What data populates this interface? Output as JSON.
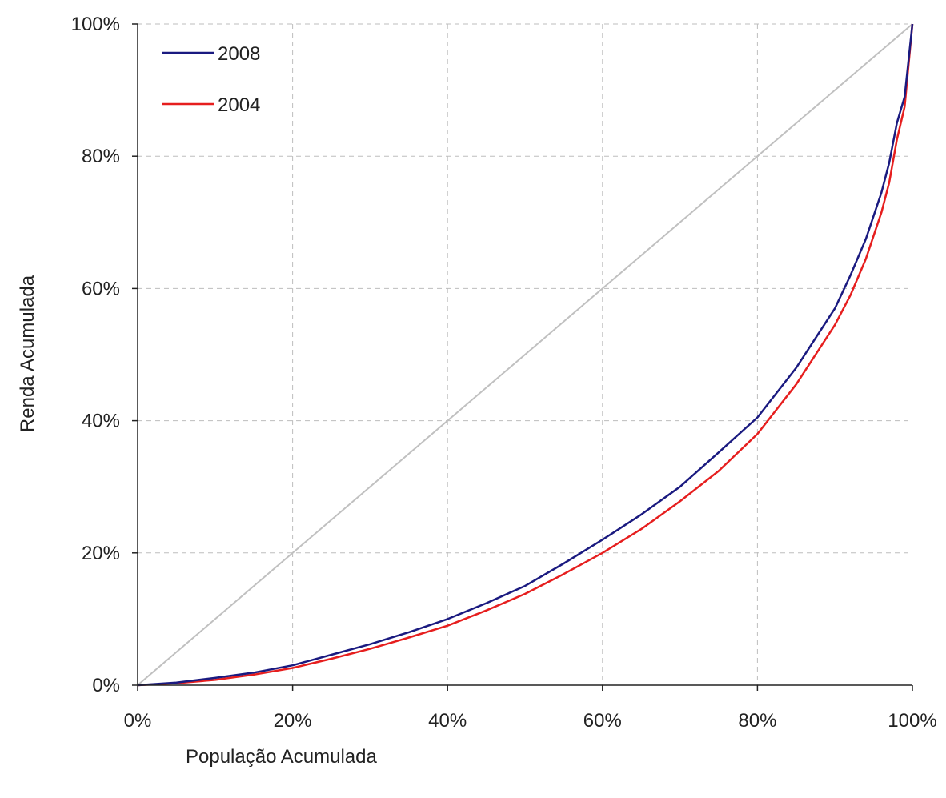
{
  "chart_data": {
    "type": "line",
    "title": "",
    "xlabel": "População Acumulada",
    "ylabel": "Renda Acumulada",
    "xlim": [
      0,
      100
    ],
    "ylim": [
      0,
      100
    ],
    "x_ticks": [
      "0%",
      "20%",
      "40%",
      "60%",
      "80%",
      "100%"
    ],
    "y_ticks": [
      "0%",
      "20%",
      "40%",
      "60%",
      "80%",
      "100%"
    ],
    "grid": true,
    "legend_position": "top-left",
    "equality_line": {
      "x": [
        0,
        100
      ],
      "y": [
        0,
        100
      ],
      "color": "#c0c0c0"
    },
    "series": [
      {
        "name": "2008",
        "color": "#1a1a80",
        "x": [
          0,
          5,
          10,
          15,
          20,
          25,
          30,
          35,
          40,
          45,
          50,
          55,
          60,
          65,
          70,
          75,
          80,
          85,
          90,
          92,
          94,
          96,
          97,
          98,
          99,
          100
        ],
        "y": [
          0,
          0.4,
          1.1,
          1.9,
          3.0,
          4.6,
          6.2,
          8.0,
          10.0,
          12.4,
          15.0,
          18.4,
          22.0,
          25.8,
          30.0,
          35.2,
          40.5,
          48.0,
          57.0,
          62.0,
          67.5,
          74.5,
          79.0,
          85.0,
          89.0,
          100
        ]
      },
      {
        "name": "2004",
        "color": "#e61e1e",
        "x": [
          0,
          5,
          10,
          15,
          20,
          25,
          30,
          35,
          40,
          45,
          50,
          55,
          60,
          65,
          70,
          75,
          80,
          85,
          90,
          92,
          94,
          96,
          97,
          98,
          99,
          100
        ],
        "y": [
          0,
          0.3,
          0.8,
          1.6,
          2.6,
          4.0,
          5.5,
          7.2,
          9.0,
          11.3,
          13.8,
          16.8,
          20.0,
          23.6,
          27.8,
          32.4,
          38.0,
          45.5,
          54.5,
          59.0,
          64.5,
          71.5,
          76.0,
          82.5,
          87.5,
          100
        ]
      }
    ]
  }
}
